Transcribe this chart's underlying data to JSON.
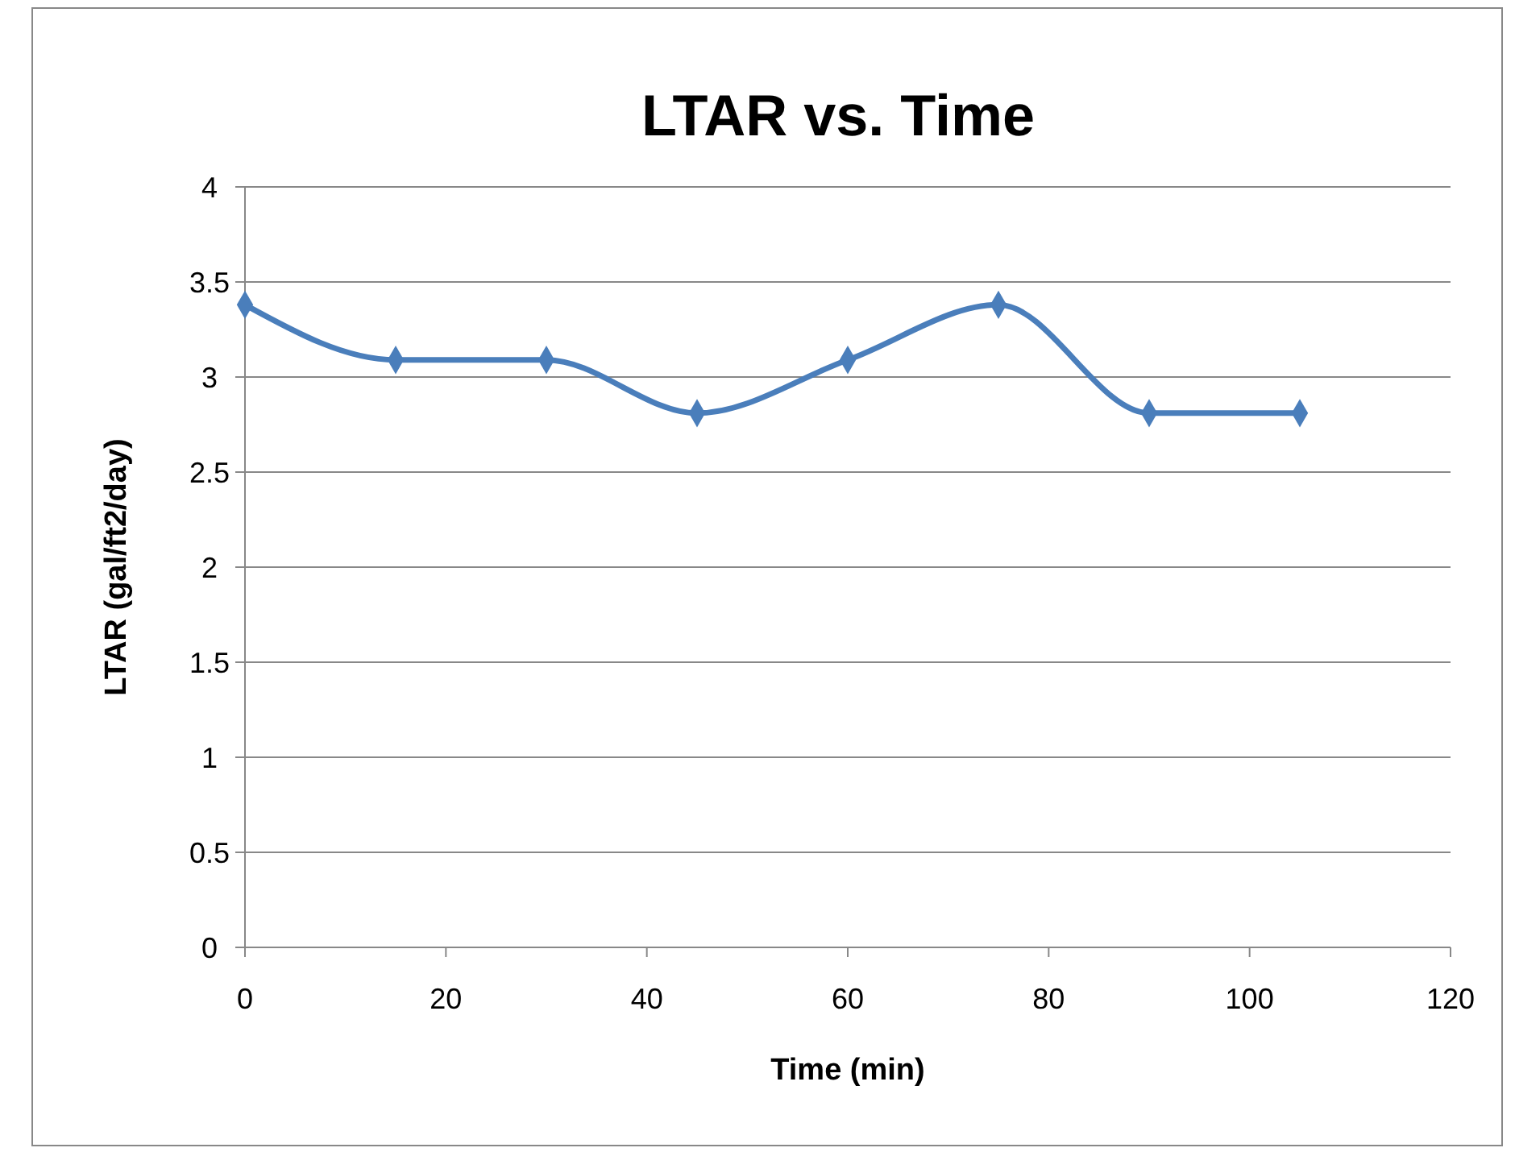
{
  "chart_data": {
    "type": "line",
    "title": "LTAR vs. Time",
    "xlabel": "Time (min)",
    "ylabel": "LTAR (gal/ft2/day)",
    "x": [
      0,
      15,
      30,
      45,
      60,
      75,
      90,
      105
    ],
    "series": [
      {
        "color": "#4a7ebb",
        "values": [
          3.38,
          3.09,
          3.09,
          2.81,
          3.09,
          3.38,
          2.81,
          2.81
        ]
      }
    ],
    "xlim": [
      0,
      120
    ],
    "xticks": [
      0,
      20,
      40,
      60,
      80,
      100,
      120
    ],
    "ylim": [
      0,
      4
    ],
    "yticks": [
      0,
      0.5,
      1,
      1.5,
      2,
      2.5,
      3,
      3.5,
      4
    ],
    "grid": "y",
    "marker": "diamond",
    "line_style": "solid"
  }
}
